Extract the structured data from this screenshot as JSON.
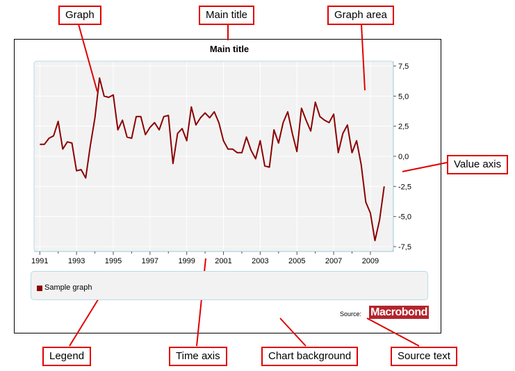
{
  "chart_data": {
    "type": "line",
    "title": "Main title",
    "x": [
      1991.0,
      1991.25,
      1991.5,
      1991.75,
      1992.0,
      1992.25,
      1992.5,
      1992.75,
      1993.0,
      1993.25,
      1993.5,
      1993.75,
      1994.0,
      1994.25,
      1994.5,
      1994.75,
      1995.0,
      1995.25,
      1995.5,
      1995.75,
      1996.0,
      1996.25,
      1996.5,
      1996.75,
      1997.0,
      1997.25,
      1997.5,
      1997.75,
      1998.0,
      1998.25,
      1998.5,
      1998.75,
      1999.0,
      1999.25,
      1999.5,
      1999.75,
      2000.0,
      2000.25,
      2000.5,
      2000.75,
      2001.0,
      2001.25,
      2001.5,
      2001.75,
      2002.0,
      2002.25,
      2002.5,
      2002.75,
      2003.0,
      2003.25,
      2003.5,
      2003.75,
      2004.0,
      2004.25,
      2004.5,
      2004.75,
      2005.0,
      2005.25,
      2005.5,
      2005.75,
      2006.0,
      2006.25,
      2006.5,
      2006.75,
      2007.0,
      2007.25,
      2007.5,
      2007.75,
      2008.0,
      2008.25,
      2008.5,
      2008.75,
      2009.0,
      2009.25,
      2009.5,
      2009.75
    ],
    "series": [
      {
        "name": "Sample graph",
        "color": "#8b0000",
        "values": [
          1.0,
          1.0,
          1.5,
          1.7,
          2.9,
          0.6,
          1.2,
          1.1,
          -1.2,
          -1.1,
          -1.8,
          0.9,
          3.2,
          6.5,
          5.0,
          4.9,
          5.1,
          2.2,
          3.0,
          1.6,
          1.5,
          3.3,
          3.3,
          1.8,
          2.4,
          2.8,
          2.2,
          3.3,
          3.4,
          -0.6,
          1.9,
          2.3,
          1.3,
          4.1,
          2.6,
          3.2,
          3.6,
          3.2,
          3.7,
          2.8,
          1.3,
          0.6,
          0.6,
          0.3,
          0.3,
          1.6,
          0.5,
          -0.2,
          1.3,
          -0.8,
          -0.9,
          2.2,
          1.1,
          2.8,
          3.7,
          1.9,
          0.4,
          4.0,
          3.0,
          2.1,
          4.5,
          3.3,
          3.0,
          2.8,
          3.5,
          0.3,
          1.9,
          2.6,
          0.3,
          1.3,
          -0.7,
          -3.8,
          -4.7,
          -7.0,
          -5.3,
          -2.5
        ]
      }
    ],
    "ylim": [
      -7.5,
      7.5
    ],
    "xlim": [
      1990.8,
      2010.1
    ],
    "yticks": [
      "7,5",
      "5,0",
      "2,5",
      "0,0",
      "-2,5",
      "-5,0",
      "-7,5"
    ],
    "ytick_values": [
      7.5,
      5.0,
      2.5,
      0.0,
      -2.5,
      -5.0,
      -7.5
    ],
    "xticks": [
      "1991",
      "1993",
      "1995",
      "1997",
      "1999",
      "2001",
      "2003",
      "2005",
      "2007",
      "2009"
    ],
    "xtick_values": [
      1991,
      1993,
      1995,
      1997,
      1999,
      2001,
      2003,
      2005,
      2007,
      2009
    ],
    "grid": true,
    "legend": "bottom",
    "plot_bg": "#f2f2f2",
    "plot_border": "#b8dbe8"
  },
  "legend": {
    "label": "Sample graph"
  },
  "source": {
    "label": "Source:",
    "logo_text": "Macrobond",
    "logo_color": "#b3242b"
  },
  "callouts": {
    "graph": "Graph",
    "main_title": "Main title",
    "graph_area": "Graph area",
    "value_axis": "Value axis",
    "legend": "Legend",
    "time_axis": "Time axis",
    "chart_background": "Chart background",
    "source_text": "Source text"
  },
  "accent_color": "#e00000"
}
